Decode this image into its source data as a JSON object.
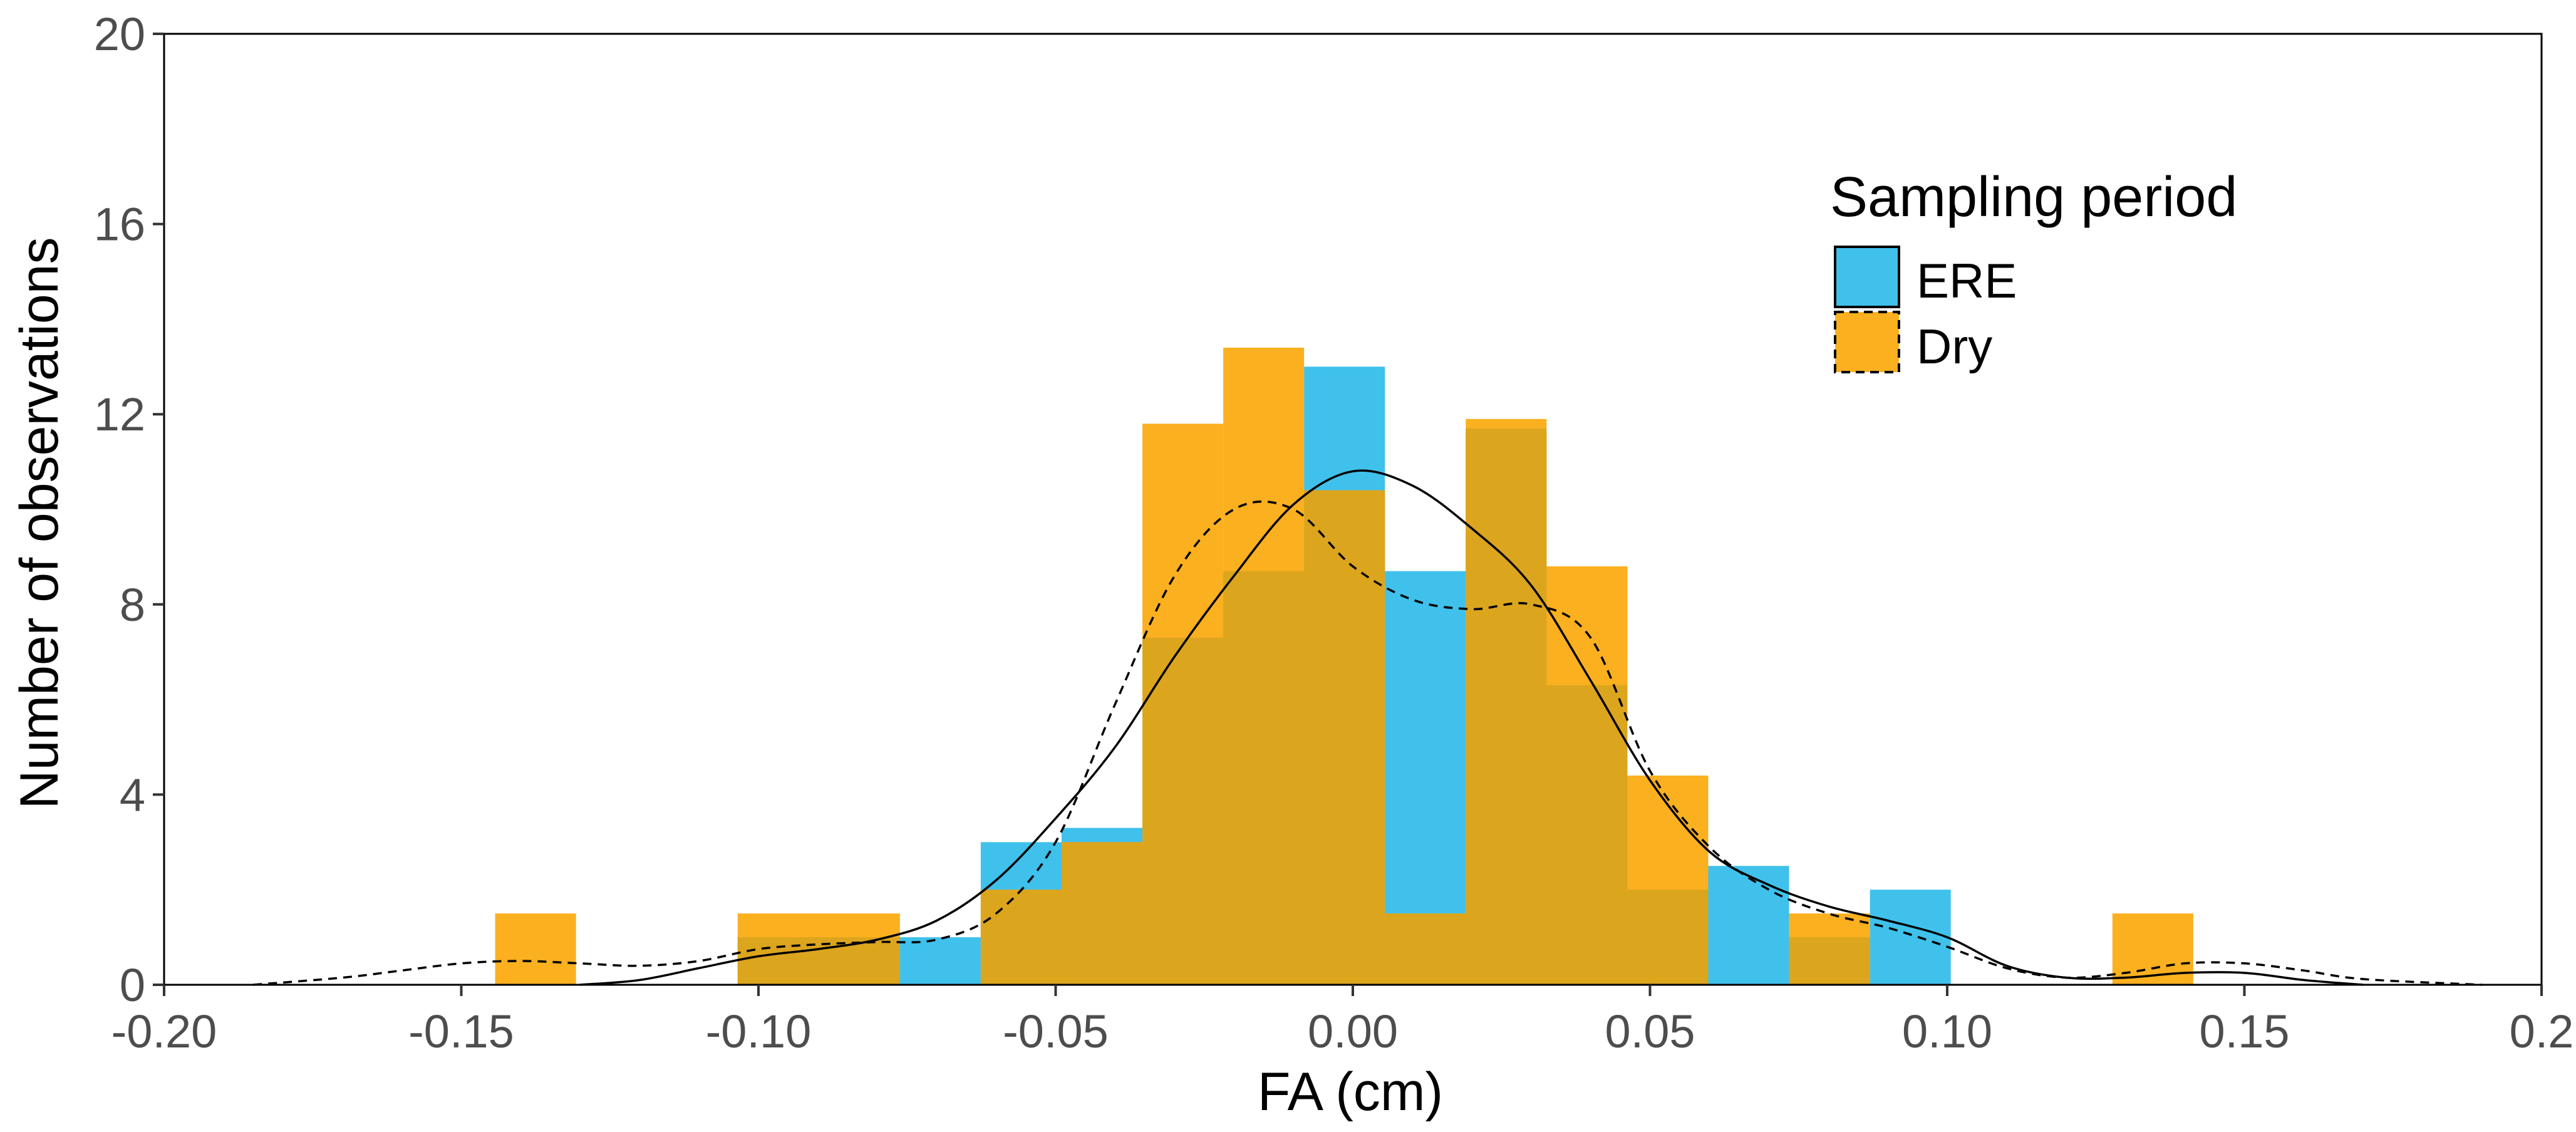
{
  "chart_data": {
    "type": "histogram",
    "title": "",
    "xlabel": "FA (cm)",
    "ylabel": "Number of observations",
    "xlim": [
      -0.2,
      0.2
    ],
    "ylim": [
      0,
      20
    ],
    "x_ticks": [
      -0.2,
      -0.15,
      -0.1,
      -0.05,
      0.0,
      0.05,
      0.1,
      0.15,
      0.2
    ],
    "x_tick_labels": [
      "-0.20",
      "-0.15",
      "-0.10",
      "-0.05",
      "0.00",
      "0.05",
      "0.10",
      "0.15",
      "0.2"
    ],
    "y_ticks": [
      0,
      4,
      8,
      12,
      16,
      20
    ],
    "y_tick_labels": [
      "0",
      "4",
      "8",
      "12",
      "16",
      "20"
    ],
    "grid": false,
    "legend": {
      "title": "Sampling period",
      "placement": "top-right",
      "entries": [
        {
          "name": "ERE",
          "color": "#3fc1ec",
          "line_style": "solid"
        },
        {
          "name": "Dry",
          "color": "#fbb020",
          "line_style": "dashed"
        }
      ]
    },
    "overlap_color": "#dca51e",
    "series": [
      {
        "name": "ERE",
        "color": "#3fc1ec",
        "bins": [
          {
            "x0": -0.1035,
            "x1": -0.0762,
            "count": 1
          },
          {
            "x0": -0.0762,
            "x1": -0.0626,
            "count": 1
          },
          {
            "x0": -0.0626,
            "x1": -0.049,
            "count": 3
          },
          {
            "x0": -0.049,
            "x1": -0.0354,
            "count": 3.3
          },
          {
            "x0": -0.0354,
            "x1": -0.0218,
            "count": 7.3
          },
          {
            "x0": -0.0218,
            "x1": -0.0082,
            "count": 8.7
          },
          {
            "x0": -0.0082,
            "x1": 0.0054,
            "count": 13
          },
          {
            "x0": 0.0054,
            "x1": 0.019,
            "count": 8.7
          },
          {
            "x0": 0.019,
            "x1": 0.0326,
            "count": 11.7
          },
          {
            "x0": 0.0326,
            "x1": 0.0462,
            "count": 6.3
          },
          {
            "x0": 0.0462,
            "x1": 0.0598,
            "count": 2
          },
          {
            "x0": 0.0598,
            "x1": 0.0734,
            "count": 2.5
          },
          {
            "x0": 0.0734,
            "x1": 0.087,
            "count": 1
          },
          {
            "x0": 0.087,
            "x1": 0.1006,
            "count": 2
          }
        ],
        "density_x": [
          -0.13,
          -0.12,
          -0.11,
          -0.1,
          -0.09,
          -0.08,
          -0.07,
          -0.06,
          -0.05,
          -0.04,
          -0.03,
          -0.02,
          -0.01,
          0.0,
          0.01,
          0.02,
          0.03,
          0.04,
          0.05,
          0.06,
          0.07,
          0.08,
          0.09,
          0.1,
          0.11,
          0.12,
          0.13,
          0.14,
          0.15,
          0.16,
          0.17
        ],
        "density_y": [
          0.0,
          0.1,
          0.35,
          0.6,
          0.75,
          0.95,
          1.35,
          2.2,
          3.5,
          5.0,
          6.9,
          8.6,
          10.1,
          10.8,
          10.5,
          9.6,
          8.4,
          6.4,
          4.3,
          2.8,
          2.1,
          1.65,
          1.35,
          1.0,
          0.4,
          0.15,
          0.15,
          0.25,
          0.25,
          0.1,
          0.0
        ]
      },
      {
        "name": "Dry",
        "color": "#fbb020",
        "bins": [
          {
            "x0": -0.1443,
            "x1": -0.1307,
            "count": 1.5
          },
          {
            "x0": -0.1035,
            "x1": -0.0762,
            "count": 1.5
          },
          {
            "x0": -0.0626,
            "x1": -0.049,
            "count": 2
          },
          {
            "x0": -0.049,
            "x1": -0.0354,
            "count": 3
          },
          {
            "x0": -0.0354,
            "x1": -0.0218,
            "count": 11.8
          },
          {
            "x0": -0.0218,
            "x1": -0.0082,
            "count": 13.4
          },
          {
            "x0": -0.0082,
            "x1": 0.0054,
            "count": 10.4
          },
          {
            "x0": 0.0054,
            "x1": 0.019,
            "count": 1.5
          },
          {
            "x0": 0.019,
            "x1": 0.0326,
            "count": 11.9
          },
          {
            "x0": 0.0326,
            "x1": 0.0462,
            "count": 8.8
          },
          {
            "x0": 0.0462,
            "x1": 0.0598,
            "count": 4.4
          },
          {
            "x0": 0.0734,
            "x1": 0.087,
            "count": 1.5
          },
          {
            "x0": 0.1278,
            "x1": 0.1414,
            "count": 1.5
          }
        ],
        "density_x": [
          -0.185,
          -0.17,
          -0.16,
          -0.15,
          -0.14,
          -0.13,
          -0.12,
          -0.11,
          -0.1,
          -0.09,
          -0.08,
          -0.07,
          -0.06,
          -0.05,
          -0.04,
          -0.03,
          -0.02,
          -0.01,
          0.0,
          0.01,
          0.02,
          0.03,
          0.04,
          0.05,
          0.06,
          0.07,
          0.08,
          0.09,
          0.1,
          0.11,
          0.12,
          0.13,
          0.14,
          0.15,
          0.16,
          0.17,
          0.19
        ],
        "density_y": [
          0.0,
          0.15,
          0.3,
          0.45,
          0.5,
          0.45,
          0.4,
          0.5,
          0.75,
          0.85,
          0.9,
          0.95,
          1.5,
          3.0,
          5.9,
          8.6,
          10.0,
          10.0,
          8.8,
          8.1,
          7.9,
          8.0,
          7.3,
          4.5,
          2.9,
          2.0,
          1.5,
          1.2,
          0.8,
          0.35,
          0.15,
          0.25,
          0.45,
          0.45,
          0.3,
          0.12,
          0.0
        ]
      }
    ]
  }
}
